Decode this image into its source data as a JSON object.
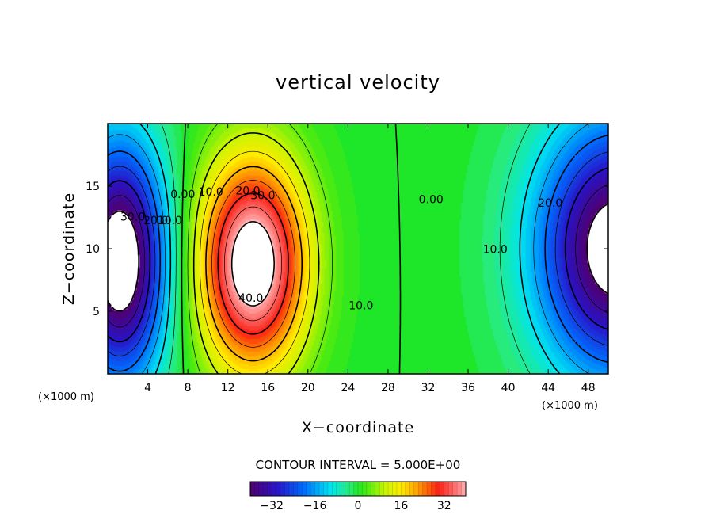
{
  "chart_data": {
    "type": "heatmap",
    "subtype": "filled-contour",
    "title": "vertical velocity",
    "xlabel": "X−coordinate",
    "ylabel": "Z−coordinate",
    "x_unit": "(×1000 m)",
    "y_unit": "(×1000 m)",
    "xlim": [
      0,
      50
    ],
    "ylim": [
      0,
      20
    ],
    "x_ticks": [
      "4",
      "8",
      "12",
      "16",
      "20",
      "24",
      "28",
      "32",
      "36",
      "40",
      "44",
      "48"
    ],
    "x_tick_values": [
      4,
      8,
      12,
      16,
      20,
      24,
      28,
      32,
      36,
      40,
      44,
      48
    ],
    "y_ticks": [
      "5",
      "10",
      "15"
    ],
    "y_tick_values": [
      5,
      10,
      15
    ],
    "contour_interval_text": "CONTOUR INTERVAL = 5.000E+00",
    "contour_interval": 5,
    "value_range": [
      -40,
      40
    ],
    "contour_labels": [
      {
        "text": "30.0",
        "x": 2.5,
        "z": 12.5
      },
      {
        "text": "20.0",
        "x": 4.8,
        "z": 12.2
      },
      {
        "text": "10.0",
        "x": 6.2,
        "z": 12.2
      },
      {
        "text": "0.00",
        "x": 7.5,
        "z": 14.3
      },
      {
        "text": "10.0",
        "x": 10.3,
        "z": 14.5
      },
      {
        "text": "20.0",
        "x": 14.0,
        "z": 14.6
      },
      {
        "text": "30.0",
        "x": 15.5,
        "z": 14.2
      },
      {
        "text": "40.0",
        "x": 14.3,
        "z": 6.0
      },
      {
        "text": "10.0",
        "x": 25.3,
        "z": 5.4
      },
      {
        "text": "0.00",
        "x": 32.3,
        "z": 13.9
      },
      {
        "text": "10.0",
        "x": 38.7,
        "z": 9.9
      },
      {
        "text": "20.0",
        "x": 44.2,
        "z": 13.6
      }
    ],
    "colorbar_ticks": [
      "−32",
      "−16",
      "0",
      "16",
      "32"
    ],
    "colorbar_tick_values": [
      -32,
      -16,
      0,
      16,
      32
    ],
    "colorbar_orientation": "horizontal",
    "colormap": "rainbow (purple-blue-cyan-green-yellow-red-pink)",
    "out_of_range_color": "#ffffff"
  }
}
